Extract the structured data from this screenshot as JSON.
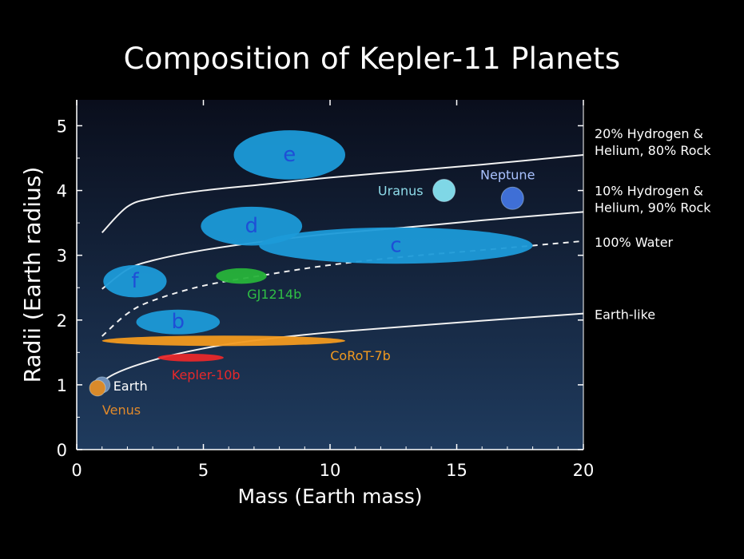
{
  "chart_data": {
    "type": "scatter",
    "title": "Composition of Kepler-11 Planets",
    "xlabel": "Mass (Earth mass)",
    "ylabel": "Radii (Earth radius)",
    "xlim": [
      0,
      20
    ],
    "ylim": [
      0,
      5.4
    ],
    "xticks": [
      "0",
      "5",
      "10",
      "15",
      "20"
    ],
    "yticks": [
      "0",
      "1",
      "2",
      "3",
      "4",
      "5"
    ],
    "grid": false,
    "curves": [
      {
        "label_lines": [
          "20% Hydrogen &",
          "Helium, 80% Rock"
        ],
        "style": "solid",
        "x": [
          1,
          2,
          3,
          5,
          7.5,
          10,
          13,
          16,
          20
        ],
        "y": [
          3.35,
          3.75,
          3.88,
          4.0,
          4.1,
          4.2,
          4.3,
          4.4,
          4.55
        ]
      },
      {
        "label_lines": [
          "10% Hydrogen &",
          "Helium, 90% Rock"
        ],
        "style": "solid",
        "x": [
          1,
          2,
          3,
          5,
          7.5,
          10,
          13,
          16,
          20
        ],
        "y": [
          2.48,
          2.78,
          2.92,
          3.08,
          3.22,
          3.33,
          3.43,
          3.54,
          3.67
        ]
      },
      {
        "label_lines": [
          "100% Water"
        ],
        "style": "dashed",
        "x": [
          1,
          2,
          3,
          5,
          7.5,
          10,
          13,
          16,
          20
        ],
        "y": [
          1.75,
          2.1,
          2.3,
          2.53,
          2.7,
          2.85,
          2.98,
          3.08,
          3.22
        ]
      },
      {
        "label_lines": [
          "Earth-like"
        ],
        "style": "solid",
        "x": [
          0.8,
          1.5,
          2.5,
          4,
          6,
          8,
          10,
          13,
          16,
          20
        ],
        "y": [
          1.0,
          1.17,
          1.32,
          1.48,
          1.63,
          1.73,
          1.81,
          1.9,
          1.99,
          2.1
        ]
      }
    ],
    "regions": [
      {
        "label": "e",
        "x": 8.4,
        "y": 4.55,
        "dx": 2.2,
        "dy": 0.38,
        "color": "#1c9ad8",
        "label_color": "#1e4fd6"
      },
      {
        "label": "d",
        "x": 6.9,
        "y": 3.45,
        "dx": 2.0,
        "dy": 0.3,
        "color": "#1c9ad8",
        "label_color": "#1e4fd6"
      },
      {
        "label": "c",
        "x": 12.6,
        "y": 3.15,
        "dx": 5.4,
        "dy": 0.28,
        "color": "#1c9ad8",
        "label_color": "#1e4fd6"
      },
      {
        "label": "f",
        "x": 2.3,
        "y": 2.6,
        "dx": 1.25,
        "dy": 0.25,
        "color": "#1c9ad8",
        "label_color": "#1e4fd6"
      },
      {
        "label": "b",
        "x": 4.0,
        "y": 1.97,
        "dx": 1.65,
        "dy": 0.19,
        "color": "#1c9ad8",
        "label_color": "#1e4fd6"
      },
      {
        "label": "GJ1214b",
        "x": 6.5,
        "y": 2.68,
        "dx": 1.0,
        "dy": 0.12,
        "color": "#27b33a",
        "label_color": "#2fbf45",
        "label_x": 7.8,
        "label_y": 2.4
      },
      {
        "label": "CoRoT-7b",
        "x": 5.8,
        "y": 1.68,
        "dx": 4.8,
        "dy": 0.08,
        "color": "#f29a1f",
        "label_color": "#f29a1f",
        "label_x": 11.2,
        "label_y": 1.45
      },
      {
        "label": "Kepler-10b",
        "x": 4.5,
        "y": 1.42,
        "dx": 1.3,
        "dy": 0.06,
        "color": "#e8282a",
        "label_color": "#e8282a",
        "label_x": 5.1,
        "label_y": 1.15
      }
    ],
    "points": [
      {
        "label": "Uranus",
        "x": 14.5,
        "y": 4.0,
        "color": "#7fd7e6",
        "label_color": "#8fdcea"
      },
      {
        "label": "Neptune",
        "x": 17.2,
        "y": 3.88,
        "color": "#3f6fd6",
        "label_color": "#a9c2ff"
      },
      {
        "label": "Earth",
        "x": 1.0,
        "y": 1.0,
        "color": "#6f8fb8",
        "label_color": "#ffffff"
      },
      {
        "label": "Venus",
        "x": 0.82,
        "y": 0.95,
        "color": "#d98a2a",
        "label_color": "#e0892a"
      }
    ]
  }
}
